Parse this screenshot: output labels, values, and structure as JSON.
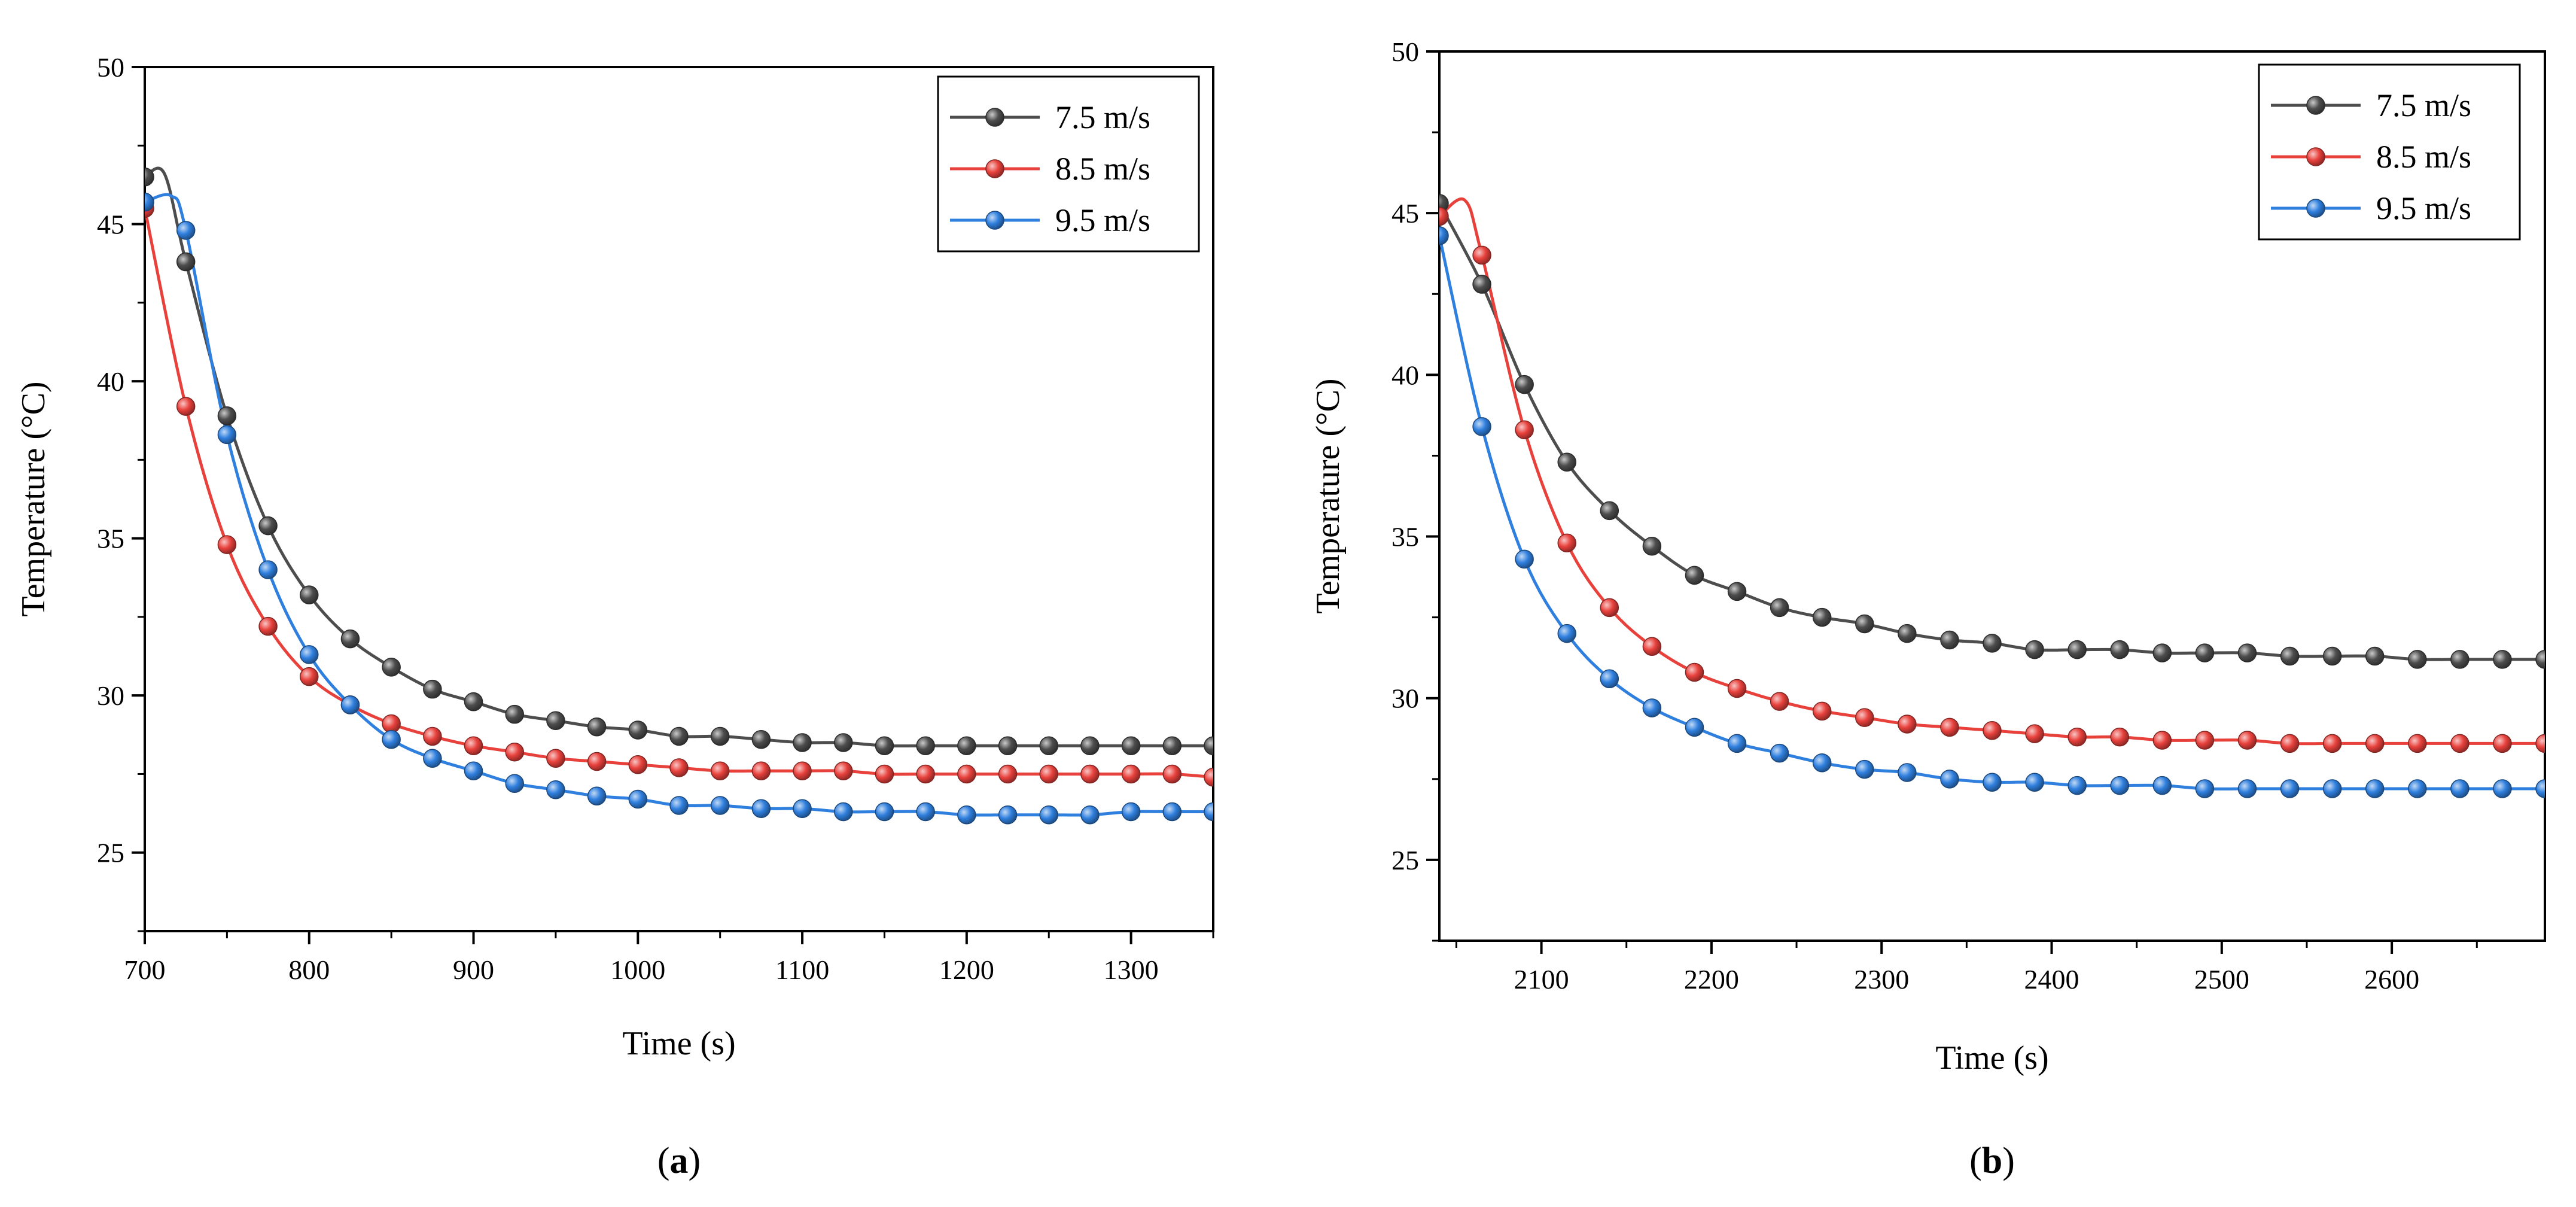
{
  "chart_data": [
    {
      "type": "line",
      "panel_label": "(a)",
      "panel_letter": "a",
      "title": "",
      "xlabel": "Time (s)",
      "ylabel": "Temperature (°C)",
      "xlim": [
        700,
        1350
      ],
      "ylim": [
        22.5,
        50
      ],
      "xticks": [
        700,
        800,
        900,
        1000,
        1100,
        1200,
        1300
      ],
      "yticks": [
        25,
        30,
        35,
        40,
        45,
        50
      ],
      "grid": false,
      "legend_position": "top-right",
      "x": [
        700,
        725,
        750,
        775,
        800,
        825,
        850,
        875,
        900,
        925,
        950,
        975,
        1000,
        1025,
        1050,
        1075,
        1100,
        1125,
        1150,
        1175,
        1200,
        1225,
        1250,
        1275,
        1300,
        1325,
        1350
      ],
      "series": [
        {
          "name": "7.5 m/s",
          "color": "#4d4d4d",
          "peak": [
            712,
            46.6
          ],
          "values": [
            46.5,
            43.8,
            38.9,
            35.4,
            33.2,
            31.8,
            30.9,
            30.2,
            29.8,
            29.4,
            29.2,
            29.0,
            28.9,
            28.7,
            28.7,
            28.6,
            28.5,
            28.5,
            28.4,
            28.4,
            28.4,
            28.4,
            28.4,
            28.4,
            28.4,
            28.4,
            28.4
          ]
        },
        {
          "name": "8.5 m/s",
          "color": "#e8413c",
          "peak": null,
          "values": [
            45.5,
            39.2,
            34.8,
            32.2,
            30.6,
            29.7,
            29.1,
            28.7,
            28.4,
            28.2,
            28.0,
            27.9,
            27.8,
            27.7,
            27.6,
            27.6,
            27.6,
            27.6,
            27.5,
            27.5,
            27.5,
            27.5,
            27.5,
            27.5,
            27.5,
            27.5,
            27.4
          ]
        },
        {
          "name": "9.5 m/s",
          "color": "#2f7fde",
          "peak": [
            716,
            45.9
          ],
          "values": [
            45.7,
            44.8,
            38.3,
            34.0,
            31.3,
            29.7,
            28.6,
            28.0,
            27.6,
            27.2,
            27.0,
            26.8,
            26.7,
            26.5,
            26.5,
            26.4,
            26.4,
            26.3,
            26.3,
            26.3,
            26.2,
            26.2,
            26.2,
            26.2,
            26.3,
            26.3,
            26.3
          ]
        }
      ]
    },
    {
      "type": "line",
      "panel_label": "(b)",
      "panel_letter": "b",
      "title": "",
      "xlabel": "Time (s)",
      "ylabel": "Temperature (°C)",
      "xlim": [
        2040,
        2690
      ],
      "ylim": [
        22.5,
        50
      ],
      "xticks": [
        2100,
        2200,
        2300,
        2400,
        2500,
        2600
      ],
      "yticks": [
        25,
        30,
        35,
        40,
        45,
        50
      ],
      "grid": false,
      "legend_position": "top-right",
      "x": [
        2040,
        2065,
        2090,
        2115,
        2140,
        2165,
        2190,
        2215,
        2240,
        2265,
        2290,
        2315,
        2340,
        2365,
        2390,
        2415,
        2440,
        2465,
        2490,
        2515,
        2540,
        2565,
        2590,
        2615,
        2640,
        2665,
        2690
      ],
      "series": [
        {
          "name": "7.5 m/s",
          "color": "#4d4d4d",
          "peak": null,
          "values": [
            45.3,
            42.8,
            39.7,
            37.3,
            35.8,
            34.7,
            33.8,
            33.3,
            32.8,
            32.5,
            32.3,
            32.0,
            31.8,
            31.7,
            31.5,
            31.5,
            31.5,
            31.4,
            31.4,
            31.4,
            31.3,
            31.3,
            31.3,
            31.2,
            31.2,
            31.2,
            31.2
          ]
        },
        {
          "name": "8.5 m/s",
          "color": "#e8413c",
          "peak": [
            2055,
            45.4
          ],
          "values": [
            44.9,
            43.7,
            38.3,
            34.8,
            32.8,
            31.6,
            30.8,
            30.3,
            29.9,
            29.6,
            29.4,
            29.2,
            29.1,
            29.0,
            28.9,
            28.8,
            28.8,
            28.7,
            28.7,
            28.7,
            28.6,
            28.6,
            28.6,
            28.6,
            28.6,
            28.6,
            28.6
          ]
        },
        {
          "name": "9.5 m/s",
          "color": "#2f7fde",
          "peak": null,
          "values": [
            44.3,
            38.4,
            34.3,
            32.0,
            30.6,
            29.7,
            29.1,
            28.6,
            28.3,
            28.0,
            27.8,
            27.7,
            27.5,
            27.4,
            27.4,
            27.3,
            27.3,
            27.3,
            27.2,
            27.2,
            27.2,
            27.2,
            27.2,
            27.2,
            27.2,
            27.2,
            27.2
          ]
        }
      ]
    }
  ]
}
